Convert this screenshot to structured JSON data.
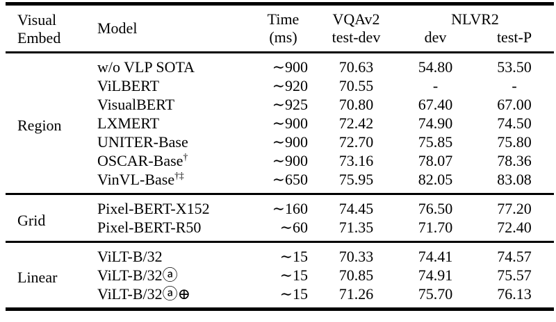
{
  "page": {
    "background": "#ffffff",
    "text_color": "#000000",
    "rule_color": "#000000"
  },
  "table": {
    "header": {
      "visual_embed": [
        "Visual",
        "Embed"
      ],
      "model": "Model",
      "time": [
        "Time",
        "(ms)"
      ],
      "vqav2": [
        "VQAv2",
        "test-dev"
      ],
      "nlvr2": "NLVR2",
      "nlvr2_dev": "dev",
      "nlvr2_testp": "test-P"
    },
    "groups": [
      {
        "embed": "Region",
        "rows": [
          {
            "model": "w/o VLP SOTA",
            "model_sup": "",
            "time": "∼900",
            "vqav2_testdev": "70.63",
            "nlvr2_dev": "54.80",
            "nlvr2_testp": "53.50"
          },
          {
            "model": "ViLBERT",
            "model_sup": "",
            "time": "∼920",
            "vqav2_testdev": "70.55",
            "nlvr2_dev": "-",
            "nlvr2_testp": "-"
          },
          {
            "model": "VisualBERT",
            "model_sup": "",
            "time": "∼925",
            "vqav2_testdev": "70.80",
            "nlvr2_dev": "67.40",
            "nlvr2_testp": "67.00"
          },
          {
            "model": "LXMERT",
            "model_sup": "",
            "time": "∼900",
            "vqav2_testdev": "72.42",
            "nlvr2_dev": "74.90",
            "nlvr2_testp": "74.50"
          },
          {
            "model": "UNITER-Base",
            "model_sup": "",
            "time": "∼900",
            "vqav2_testdev": "72.70",
            "nlvr2_dev": "75.85",
            "nlvr2_testp": "75.80"
          },
          {
            "model": "OSCAR-Base",
            "model_sup": "†",
            "time": "∼900",
            "vqav2_testdev": "73.16",
            "nlvr2_dev": "78.07",
            "nlvr2_testp": "78.36"
          },
          {
            "model": "VinVL-Base",
            "model_sup": "†‡",
            "time": "∼650",
            "vqav2_testdev": "75.95",
            "nlvr2_dev": "82.05",
            "nlvr2_testp": "83.08"
          }
        ]
      },
      {
        "embed": "Grid",
        "rows": [
          {
            "model": "Pixel-BERT-X152",
            "model_sup": "",
            "time": "∼160",
            "vqav2_testdev": "74.45",
            "nlvr2_dev": "76.50",
            "nlvr2_testp": "77.20"
          },
          {
            "model": "Pixel-BERT-R50",
            "model_sup": "",
            "time": "∼60",
            "vqav2_testdev": "71.35",
            "nlvr2_dev": "71.70",
            "nlvr2_testp": "72.40"
          }
        ]
      },
      {
        "embed": "Linear",
        "rows": [
          {
            "model": "ViLT-B/32",
            "model_sup": "",
            "time": "∼15",
            "vqav2_testdev": "70.33",
            "nlvr2_dev": "74.41",
            "nlvr2_testp": "74.57"
          },
          {
            "model": "ViLT-B/32ⓐ",
            "model_sup": "",
            "time": "∼15",
            "vqav2_testdev": "70.85",
            "nlvr2_dev": "74.91",
            "nlvr2_testp": "75.57"
          },
          {
            "model": "ViLT-B/32ⓐ⊕",
            "model_sup": "",
            "time": "∼15",
            "vqav2_testdev": "71.26",
            "nlvr2_dev": "75.70",
            "nlvr2_testp": "76.13"
          }
        ]
      }
    ]
  }
}
